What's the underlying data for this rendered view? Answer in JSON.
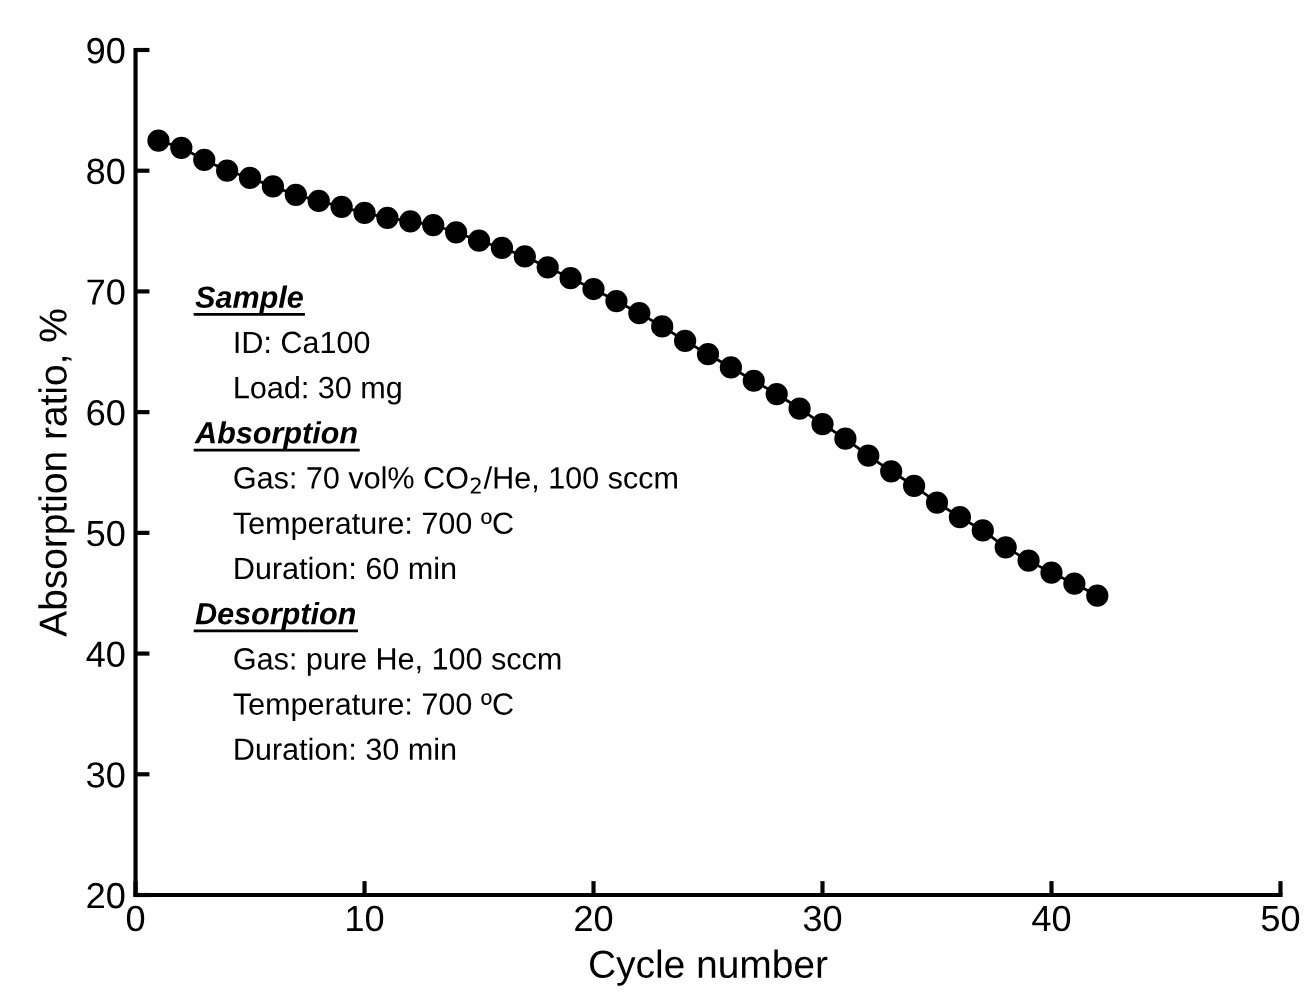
{
  "chart_data": {
    "type": "line",
    "xlabel": "Cycle number",
    "ylabel": "Absorption ratio, %",
    "x": [
      1,
      2,
      3,
      4,
      5,
      6,
      7,
      8,
      9,
      10,
      11,
      12,
      13,
      14,
      15,
      16,
      17,
      18,
      19,
      20,
      21,
      22,
      23,
      24,
      25,
      26,
      27,
      28,
      29,
      30,
      31,
      32,
      33,
      34,
      35,
      36,
      37,
      38,
      39,
      40,
      41,
      42
    ],
    "series": [
      {
        "color": "#000000",
        "values": [
          82.5,
          81.9,
          80.9,
          80.0,
          79.4,
          78.7,
          78.0,
          77.5,
          77.0,
          76.5,
          76.1,
          75.8,
          75.5,
          74.9,
          74.2,
          73.6,
          72.9,
          72.0,
          71.1,
          70.2,
          69.2,
          68.2,
          67.1,
          65.9,
          64.8,
          63.7,
          62.6,
          61.5,
          60.3,
          59.0,
          57.8,
          56.4,
          55.1,
          53.9,
          52.5,
          51.3,
          50.2,
          48.8,
          47.7,
          46.7,
          45.8,
          44.8
        ]
      }
    ],
    "xlim": [
      0,
      50
    ],
    "ylim": [
      20,
      90
    ],
    "xticks": [
      0,
      10,
      20,
      30,
      40,
      50
    ],
    "yticks": [
      20,
      30,
      40,
      50,
      60,
      70,
      80,
      90
    ],
    "marker": "circle",
    "line_style": "solid",
    "grid": false,
    "legend": false,
    "annotations": [
      "Sample",
      "ID: Ca100",
      "Load: 30 mg",
      "Absorption",
      "Gas: 70 vol% CO$_{2}$/He, 100 sccm",
      "Temperature: 700 ºC",
      "Duration: 60 min",
      "Desorption",
      "Gas: pure He, 100 sccm",
      "Temperature: 700 ºC",
      "Duration: 30 min"
    ]
  }
}
